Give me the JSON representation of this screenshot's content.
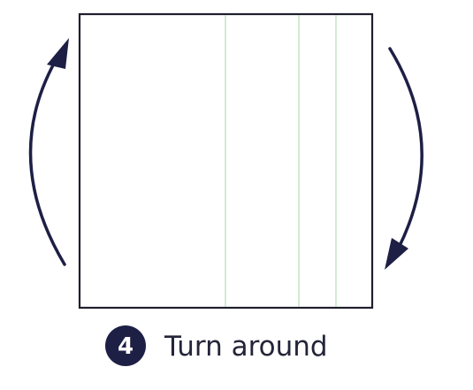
{
  "colors": {
    "outline": "#1f1f2e",
    "fold_line": "#b9dcb6",
    "arrow": "#1e1f45",
    "badge_fill": "#1e1f45",
    "badge_text": "#ffffff",
    "label": "#24243a"
  },
  "step": {
    "number": "4",
    "label": "Turn around"
  },
  "icons": {
    "left_arrow": "curved-arrow-up-icon",
    "right_arrow": "curved-arrow-down-icon"
  }
}
